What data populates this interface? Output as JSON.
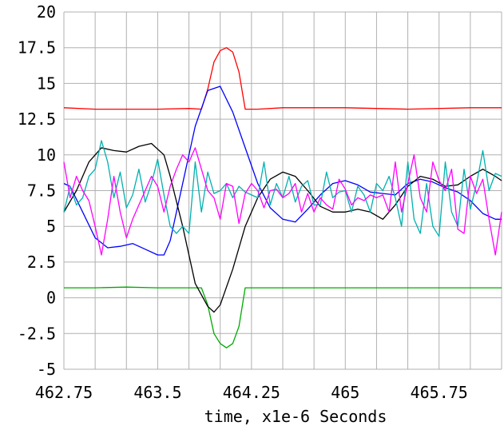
{
  "chart_data": {
    "type": "line",
    "xlabel": "time, x1e-6 Seconds",
    "ylabel": "",
    "xlim": [
      462.75,
      466.25
    ],
    "ylim": [
      -5,
      20
    ],
    "xticks": [
      462.75,
      463.5,
      464.25,
      465,
      465.75
    ],
    "xtick_labels": [
      "462.75",
      "463.5",
      "464.25",
      "465",
      "465.75"
    ],
    "yticks": [
      20,
      17.5,
      15,
      12.5,
      10,
      7.5,
      5,
      2.5,
      0,
      -2.5,
      -5
    ],
    "ytick_labels": [
      "20",
      "17.5",
      "15",
      "12.5",
      "10",
      "7.5",
      "5",
      "2.5",
      "0",
      "-2.5",
      "-5"
    ],
    "grid": true,
    "series": [
      {
        "color": "#ff0000",
        "x": [
          462.75,
          463.0,
          463.25,
          463.5,
          463.75,
          463.85,
          463.9,
          463.95,
          464.0,
          464.05,
          464.1,
          464.15,
          464.2,
          464.3,
          464.5,
          465.0,
          465.5,
          466.0,
          466.25
        ],
        "y": [
          13.3,
          13.2,
          13.2,
          13.2,
          13.25,
          13.2,
          14.6,
          16.5,
          17.3,
          17.5,
          17.2,
          15.8,
          13.2,
          13.2,
          13.3,
          13.3,
          13.2,
          13.3,
          13.3
        ]
      },
      {
        "color": "#00aa00",
        "x": [
          462.75,
          463.0,
          463.25,
          463.5,
          463.75,
          463.85,
          463.9,
          463.95,
          464.0,
          464.05,
          464.1,
          464.15,
          464.2,
          464.3,
          464.5,
          465.0,
          465.5,
          466.0,
          466.25
        ],
        "y": [
          0.7,
          0.7,
          0.75,
          0.7,
          0.7,
          0.7,
          -0.5,
          -2.5,
          -3.2,
          -3.5,
          -3.2,
          -2.0,
          0.7,
          0.7,
          0.7,
          0.7,
          0.7,
          0.7,
          0.7
        ]
      },
      {
        "color": "#0000ff",
        "x": [
          462.75,
          462.8,
          462.9,
          463.0,
          463.1,
          463.2,
          463.3,
          463.4,
          463.5,
          463.55,
          463.6,
          463.7,
          463.8,
          463.9,
          464.0,
          464.1,
          464.2,
          464.3,
          464.4,
          464.5,
          464.6,
          464.7,
          464.8,
          464.9,
          465.0,
          465.1,
          465.2,
          465.3,
          465.4,
          465.5,
          465.6,
          465.7,
          465.8,
          465.9,
          466.0,
          466.1,
          466.2,
          466.25
        ],
        "y": [
          8.0,
          7.8,
          6.0,
          4.2,
          3.5,
          3.6,
          3.8,
          3.4,
          3.0,
          3.0,
          4.0,
          8.0,
          12.0,
          14.5,
          14.8,
          13.0,
          10.5,
          8.0,
          6.3,
          5.5,
          5.3,
          6.2,
          7.2,
          8.0,
          8.2,
          7.9,
          7.4,
          7.3,
          7.2,
          8.0,
          8.3,
          8.1,
          7.7,
          7.4,
          6.8,
          5.9,
          5.5,
          5.5
        ]
      },
      {
        "color": "#000000",
        "x": [
          462.75,
          462.85,
          462.95,
          463.05,
          463.15,
          463.25,
          463.35,
          463.45,
          463.55,
          463.6,
          463.7,
          463.8,
          463.9,
          463.95,
          464.0,
          464.1,
          464.2,
          464.3,
          464.4,
          464.5,
          464.6,
          464.7,
          464.8,
          464.9,
          465.0,
          465.1,
          465.2,
          465.3,
          465.4,
          465.5,
          465.6,
          465.7,
          465.8,
          465.9,
          466.0,
          466.1,
          466.2,
          466.25
        ],
        "y": [
          6.0,
          7.5,
          9.5,
          10.5,
          10.3,
          10.2,
          10.6,
          10.8,
          10.0,
          8.5,
          5.0,
          1.0,
          -0.6,
          -1.0,
          -0.5,
          2.0,
          5.0,
          7.0,
          8.3,
          8.8,
          8.5,
          7.5,
          6.4,
          6.0,
          6.0,
          6.2,
          6.0,
          5.5,
          6.5,
          7.8,
          8.5,
          8.3,
          7.8,
          7.9,
          8.5,
          9.0,
          8.5,
          8.2
        ]
      },
      {
        "color": "#00b0b0",
        "x": [
          462.75,
          462.8,
          462.85,
          462.9,
          462.95,
          463.0,
          463.05,
          463.1,
          463.15,
          463.2,
          463.25,
          463.3,
          463.35,
          463.4,
          463.45,
          463.5,
          463.55,
          463.6,
          463.65,
          463.7,
          463.75,
          463.8,
          463.85,
          463.9,
          463.95,
          464.0,
          464.05,
          464.1,
          464.15,
          464.2,
          464.25,
          464.3,
          464.35,
          464.4,
          464.45,
          464.5,
          464.55,
          464.6,
          464.65,
          464.7,
          464.75,
          464.8,
          464.85,
          464.9,
          464.95,
          465.0,
          465.05,
          465.1,
          465.15,
          465.2,
          465.25,
          465.3,
          465.35,
          465.4,
          465.45,
          465.5,
          465.55,
          465.6,
          465.65,
          465.7,
          465.75,
          465.8,
          465.85,
          465.9,
          465.95,
          466.0,
          466.05,
          466.1,
          466.15,
          466.2,
          466.25
        ],
        "y": [
          6.0,
          7.8,
          6.5,
          7.0,
          8.5,
          9.0,
          11.0,
          9.5,
          7.0,
          8.8,
          6.3,
          7.2,
          9.0,
          6.7,
          8.0,
          9.7,
          7.2,
          5.0,
          4.5,
          5.0,
          4.5,
          9.5,
          6.0,
          8.8,
          7.3,
          7.5,
          8.0,
          7.0,
          7.8,
          7.4,
          7.2,
          7.0,
          9.5,
          6.5,
          8.0,
          7.0,
          8.5,
          6.7,
          7.8,
          8.2,
          6.5,
          6.5,
          8.8,
          7.0,
          7.4,
          7.5,
          6.0,
          7.8,
          7.2,
          6.0,
          8.0,
          7.5,
          8.5,
          7.0,
          5.0,
          9.5,
          5.5,
          4.5,
          8.0,
          5.0,
          4.3,
          9.5,
          6.0,
          5.0,
          9.0,
          6.2,
          8.0,
          10.3,
          7.5,
          8.7,
          8.5
        ]
      },
      {
        "color": "#ff00ff",
        "x": [
          462.75,
          462.8,
          462.85,
          462.9,
          462.95,
          463.0,
          463.05,
          463.1,
          463.15,
          463.2,
          463.25,
          463.3,
          463.35,
          463.4,
          463.45,
          463.5,
          463.55,
          463.6,
          463.65,
          463.7,
          463.75,
          463.8,
          463.85,
          463.9,
          463.95,
          464.0,
          464.05,
          464.1,
          464.15,
          464.2,
          464.25,
          464.3,
          464.35,
          464.4,
          464.45,
          464.5,
          464.55,
          464.6,
          464.65,
          464.7,
          464.75,
          464.8,
          464.85,
          464.9,
          464.95,
          465.0,
          465.05,
          465.1,
          465.15,
          465.2,
          465.25,
          465.3,
          465.35,
          465.4,
          465.45,
          465.5,
          465.55,
          465.6,
          465.65,
          465.7,
          465.75,
          465.8,
          465.85,
          465.9,
          465.95,
          466.0,
          466.05,
          466.1,
          466.15,
          466.2,
          466.25
        ],
        "y": [
          9.5,
          7.0,
          8.5,
          7.5,
          6.8,
          5.0,
          3.0,
          5.5,
          8.5,
          6.0,
          4.2,
          5.5,
          6.5,
          7.5,
          8.5,
          7.8,
          6.0,
          7.8,
          9.0,
          10.0,
          9.5,
          10.5,
          9.0,
          7.5,
          7.0,
          5.5,
          8.0,
          7.8,
          5.2,
          7.3,
          8.0,
          7.5,
          6.3,
          7.5,
          7.6,
          7.0,
          7.3,
          8.0,
          6.0,
          7.3,
          6.0,
          7.0,
          6.5,
          6.2,
          8.3,
          7.6,
          6.5,
          7.0,
          6.8,
          7.2,
          7.0,
          7.2,
          6.0,
          9.5,
          6.0,
          8.0,
          10.0,
          7.0,
          6.0,
          9.5,
          8.2,
          7.5,
          9.0,
          4.8,
          4.5,
          8.5,
          7.3,
          8.3,
          5.5,
          3.0,
          6.0
        ]
      }
    ]
  }
}
